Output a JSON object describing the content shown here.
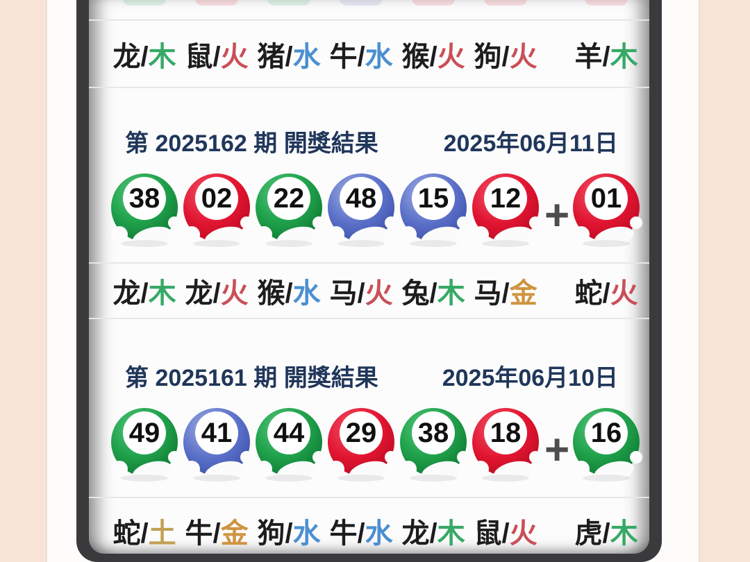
{
  "colors": {
    "page_bg": "#f8e4d6",
    "frame": "#fdfcfb",
    "bezel": "#3a3a3c",
    "screen": "#fcfcfc",
    "divider": "#e7e7e7",
    "header_text": "#20365a",
    "zodiac_text": "#1d1d1f",
    "plus": "#4d4d4d",
    "elements": {
      "木": "#36a966",
      "火": "#c94f58",
      "水": "#4b8fd0",
      "金": "#cf9440",
      "土": "#c2a054"
    },
    "balls": {
      "green": "#1fa14b",
      "red": "#e4172f",
      "blue": "#5468c4"
    }
  },
  "top_row": {
    "partial_ball_colors": [
      "green",
      "red",
      "green",
      "blue",
      "red",
      "red",
      "red"
    ],
    "zodiac": [
      {
        "animal": "龙",
        "element": "木"
      },
      {
        "animal": "鼠",
        "element": "火"
      },
      {
        "animal": "猪",
        "element": "水"
      },
      {
        "animal": "牛",
        "element": "水"
      },
      {
        "animal": "猴",
        "element": "火"
      },
      {
        "animal": "狗",
        "element": "火"
      },
      {
        "animal": "羊",
        "element": "木"
      }
    ]
  },
  "draws": [
    {
      "title": "第 2025162 期 開獎結果",
      "date": "2025年06月11日",
      "plus_label": "+",
      "balls": [
        {
          "num": "38",
          "color": "green"
        },
        {
          "num": "02",
          "color": "red"
        },
        {
          "num": "22",
          "color": "green"
        },
        {
          "num": "48",
          "color": "blue"
        },
        {
          "num": "15",
          "color": "blue"
        },
        {
          "num": "12",
          "color": "red"
        }
      ],
      "bonus": {
        "num": "01",
        "color": "red"
      },
      "zodiac": [
        {
          "animal": "龙",
          "element": "木"
        },
        {
          "animal": "龙",
          "element": "火"
        },
        {
          "animal": "猴",
          "element": "水"
        },
        {
          "animal": "马",
          "element": "火"
        },
        {
          "animal": "兔",
          "element": "木"
        },
        {
          "animal": "马",
          "element": "金"
        },
        {
          "animal": "蛇",
          "element": "火"
        }
      ]
    },
    {
      "title": "第 2025161 期 開獎結果",
      "date": "2025年06月10日",
      "plus_label": "+",
      "balls": [
        {
          "num": "49",
          "color": "green"
        },
        {
          "num": "41",
          "color": "blue"
        },
        {
          "num": "44",
          "color": "green"
        },
        {
          "num": "29",
          "color": "red"
        },
        {
          "num": "38",
          "color": "green"
        },
        {
          "num": "18",
          "color": "red"
        }
      ],
      "bonus": {
        "num": "16",
        "color": "green"
      },
      "zodiac": [
        {
          "animal": "蛇",
          "element": "土"
        },
        {
          "animal": "牛",
          "element": "金"
        },
        {
          "animal": "狗",
          "element": "水"
        },
        {
          "animal": "牛",
          "element": "水"
        },
        {
          "animal": "龙",
          "element": "木"
        },
        {
          "animal": "鼠",
          "element": "火"
        },
        {
          "animal": "虎",
          "element": "木"
        }
      ]
    }
  ]
}
